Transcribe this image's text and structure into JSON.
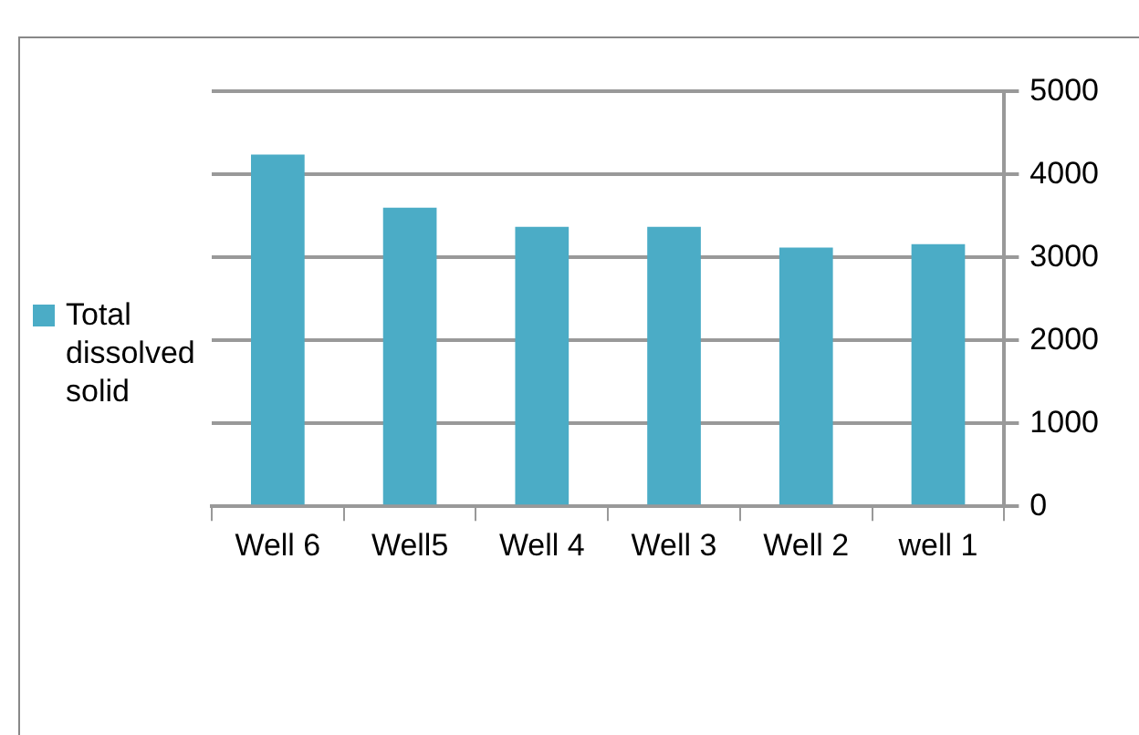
{
  "chart_data": {
    "type": "bar",
    "categories": [
      "Well 6",
      "Well5",
      "Well 4",
      "Well 3",
      "Well 2",
      "well 1"
    ],
    "series": [
      {
        "name": "Total dissolved solid",
        "color": "#4bacc6",
        "values": [
          4240,
          3600,
          3370,
          3370,
          3120,
          3160
        ]
      }
    ],
    "ylim": [
      0,
      5000
    ],
    "yticks": [
      0,
      1000,
      2000,
      3000,
      4000,
      5000
    ],
    "grid": "y",
    "legend": "left"
  }
}
